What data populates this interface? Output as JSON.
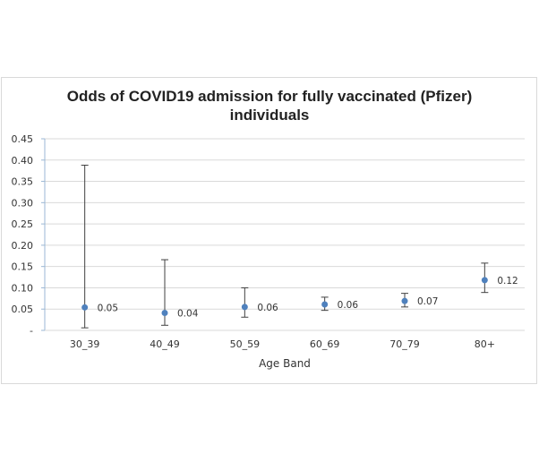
{
  "chart_data": {
    "type": "scatter",
    "title_lines": [
      "Odds of COVID19 admission for fully vaccinated (Pfizer)",
      "individuals"
    ],
    "xlabel": "Age Band",
    "ylabel": "",
    "ylim": [
      0,
      0.45
    ],
    "yticks": [
      0,
      0.05,
      0.1,
      0.15,
      0.2,
      0.25,
      0.3,
      0.35,
      0.4,
      0.45
    ],
    "ytick_labels": [
      "-",
      "0.05",
      "0.10",
      "0.15",
      "0.20",
      "0.25",
      "0.30",
      "0.35",
      "0.40",
      "0.45"
    ],
    "categories": [
      "30_39",
      "40_49",
      "50_59",
      "60_69",
      "70_79",
      "80+"
    ],
    "series": [
      {
        "values": [
          0.054,
          0.041,
          0.055,
          0.061,
          0.069,
          0.118
        ],
        "lower": [
          0.006,
          0.012,
          0.031,
          0.047,
          0.055,
          0.089
        ],
        "upper": [
          0.388,
          0.166,
          0.1,
          0.078,
          0.087,
          0.158
        ],
        "data_labels": [
          "0.05",
          "0.04",
          "0.06",
          "0.06",
          "0.07",
          "0.12"
        ]
      }
    ],
    "grid": true,
    "legend": "none",
    "colors": {
      "marker": "#4f81bd",
      "grid": "#d9d9d9",
      "axis": "#9bb7d4",
      "error_bar": "#404040"
    }
  }
}
